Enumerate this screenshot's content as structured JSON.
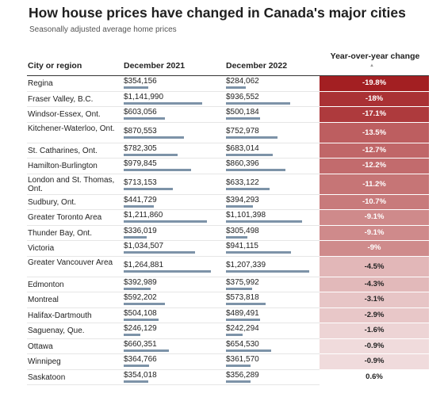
{
  "title": "How house prices have changed in Canada's major cities",
  "subtitle": "Seasonally adjusted average home prices",
  "colors": {
    "bar": "#7d93a8",
    "change_strong": "#a31f22",
    "change_neutral": "#ffffff"
  },
  "chart_data": {
    "type": "table",
    "sort_icon": "sort-ascending-icon",
    "columns": [
      "City or region",
      "December 2021",
      "December 2022",
      "Year-over-year change"
    ],
    "rows": [
      {
        "city": "Regina",
        "dec2021": "$354,156",
        "dec2022": "$284,062",
        "change": "-19.8%",
        "v2021": 354156,
        "v2022": 284062,
        "pct": -19.8
      },
      {
        "city": "Fraser Valley, B.C.",
        "dec2021": "$1,141,990",
        "dec2022": "$936,552",
        "change": "-18%",
        "v2021": 1141990,
        "v2022": 936552,
        "pct": -18.0
      },
      {
        "city": "Windsor-Essex, Ont.",
        "dec2021": "$603,056",
        "dec2022": "$500,184",
        "change": "-17.1%",
        "v2021": 603056,
        "v2022": 500184,
        "pct": -17.1
      },
      {
        "city": "Kitchener-Waterloo, Ont.",
        "dec2021": "$870,553",
        "dec2022": "$752,978",
        "change": "-13.5%",
        "v2021": 870553,
        "v2022": 752978,
        "pct": -13.5
      },
      {
        "city": "St. Catharines, Ont.",
        "dec2021": "$782,305",
        "dec2022": "$683,014",
        "change": "-12.7%",
        "v2021": 782305,
        "v2022": 683014,
        "pct": -12.7
      },
      {
        "city": "Hamilton-Burlington",
        "dec2021": "$979,845",
        "dec2022": "$860,396",
        "change": "-12.2%",
        "v2021": 979845,
        "v2022": 860396,
        "pct": -12.2
      },
      {
        "city": "London and St. Thomas, Ont.",
        "dec2021": "$713,153",
        "dec2022": "$633,122",
        "change": "-11.2%",
        "v2021": 713153,
        "v2022": 633122,
        "pct": -11.2
      },
      {
        "city": "Sudbury, Ont.",
        "dec2021": "$441,729",
        "dec2022": "$394,293",
        "change": "-10.7%",
        "v2021": 441729,
        "v2022": 394293,
        "pct": -10.7
      },
      {
        "city": "Greater Toronto Area",
        "dec2021": "$1,211,860",
        "dec2022": "$1,101,398",
        "change": "-9.1%",
        "v2021": 1211860,
        "v2022": 1101398,
        "pct": -9.1
      },
      {
        "city": "Thunder Bay, Ont.",
        "dec2021": "$336,019",
        "dec2022": "$305,498",
        "change": "-9.1%",
        "v2021": 336019,
        "v2022": 305498,
        "pct": -9.1
      },
      {
        "city": "Victoria",
        "dec2021": "$1,034,507",
        "dec2022": "$941,115",
        "change": "-9%",
        "v2021": 1034507,
        "v2022": 941115,
        "pct": -9.0
      },
      {
        "city": "Greater Vancouver Area",
        "dec2021": "$1,264,881",
        "dec2022": "$1,207,339",
        "change": "-4.5%",
        "v2021": 1264881,
        "v2022": 1207339,
        "pct": -4.5
      },
      {
        "city": "Edmonton",
        "dec2021": "$392,989",
        "dec2022": "$375,992",
        "change": "-4.3%",
        "v2021": 392989,
        "v2022": 375992,
        "pct": -4.3
      },
      {
        "city": "Montreal",
        "dec2021": "$592,202",
        "dec2022": "$573,818",
        "change": "-3.1%",
        "v2021": 592202,
        "v2022": 573818,
        "pct": -3.1
      },
      {
        "city": "Halifax-Dartmouth",
        "dec2021": "$504,108",
        "dec2022": "$489,491",
        "change": "-2.9%",
        "v2021": 504108,
        "v2022": 489491,
        "pct": -2.9
      },
      {
        "city": "Saguenay, Que.",
        "dec2021": "$246,129",
        "dec2022": "$242,294",
        "change": "-1.6%",
        "v2021": 246129,
        "v2022": 242294,
        "pct": -1.6
      },
      {
        "city": "Ottawa",
        "dec2021": "$660,351",
        "dec2022": "$654,530",
        "change": "-0.9%",
        "v2021": 660351,
        "v2022": 654530,
        "pct": -0.9
      },
      {
        "city": "Winnipeg",
        "dec2021": "$364,766",
        "dec2022": "$361,570",
        "change": "-0.9%",
        "v2021": 364766,
        "v2022": 361570,
        "pct": -0.9
      },
      {
        "city": "Saskatoon",
        "dec2021": "$354,018",
        "dec2022": "$356,289",
        "change": "0.6%",
        "v2021": 354018,
        "v2022": 356289,
        "pct": 0.6
      }
    ]
  }
}
